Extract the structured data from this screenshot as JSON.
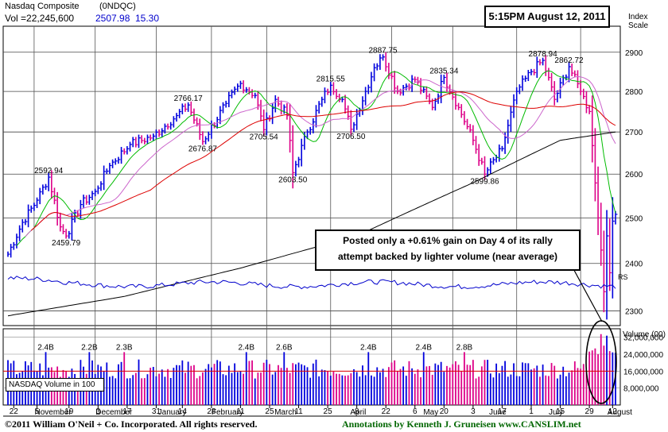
{
  "header": {
    "name": "Nasdaq Composite",
    "symbol": "(0NDQC)",
    "vol_label": "Vol =22,245,600",
    "last_price": "2507.98",
    "change": "15.30",
    "timestamp": "5:15PM August 12, 2011",
    "scale_label": [
      "Index",
      "Scale"
    ]
  },
  "annotation": {
    "lines": [
      "Posted only a +0.61% gain on Day 4 of its rally",
      "attempt backed by lighter volume (near average)"
    ]
  },
  "volume_panel": {
    "legend": "NASDAQ Volume in 100",
    "title": "Volume (00)",
    "ticks": [
      {
        "value": 32000000,
        "label": "32,000,000"
      },
      {
        "value": 24000000,
        "label": "24,000,000"
      },
      {
        "value": 16000000,
        "label": "16,000,000"
      },
      {
        "value": 8000000,
        "label": "8,000,000"
      }
    ],
    "peak_labels": [
      {
        "bar": 13,
        "label": "2.4B"
      },
      {
        "bar": 28,
        "label": "2.2B"
      },
      {
        "bar": 40,
        "label": "2.3B"
      },
      {
        "bar": 82,
        "label": "2.4B"
      },
      {
        "bar": 95,
        "label": "2.6B"
      },
      {
        "bar": 124,
        "label": "2.4B"
      },
      {
        "bar": 143,
        "label": "2.4B"
      },
      {
        "bar": 157,
        "label": "2.8B"
      }
    ]
  },
  "footer": {
    "copyright": "©2011 William O'Neil + Co. Incorporated. All rights reserved.",
    "credit": "Annotations by Kenneth J. Gruneisen www.CANSLIM.net"
  },
  "colors": {
    "up": "#0000dd",
    "down": "#dd0088",
    "ma10": "#00bb00",
    "ma21": "#cc66cc",
    "ma50": "#dd0000",
    "ma200": "#000000",
    "rs": "#0000cc",
    "grid": "#555555",
    "annotation_text": "#000000",
    "credit_text": "#006600"
  },
  "chart_data": {
    "type": "ohlc",
    "y_scale": "log",
    "ylim": [
      2270,
      2960
    ],
    "y_ticks": [
      2300,
      2400,
      2500,
      2600,
      2700,
      2800,
      2900
    ],
    "x_tick_labels": [
      {
        "bar": 2,
        "label": "22"
      },
      {
        "bar": 10,
        "label": "5"
      },
      {
        "bar": 21,
        "label": "19"
      },
      {
        "bar": 31,
        "label": "3"
      },
      {
        "bar": 41,
        "label": "17"
      },
      {
        "bar": 51,
        "label": "31"
      },
      {
        "bar": 60,
        "label": "14"
      },
      {
        "bar": 70,
        "label": "28"
      },
      {
        "bar": 80,
        "label": "11"
      },
      {
        "bar": 90,
        "label": "25"
      },
      {
        "bar": 100,
        "label": "11"
      },
      {
        "bar": 110,
        "label": "25"
      },
      {
        "bar": 120,
        "label": "8"
      },
      {
        "bar": 130,
        "label": "22"
      },
      {
        "bar": 140,
        "label": "6"
      },
      {
        "bar": 150,
        "label": "20"
      },
      {
        "bar": 160,
        "label": "3"
      },
      {
        "bar": 170,
        "label": "17"
      },
      {
        "bar": 180,
        "label": "1"
      },
      {
        "bar": 190,
        "label": "15"
      },
      {
        "bar": 200,
        "label": "29"
      },
      {
        "bar": 208,
        "label": "12"
      }
    ],
    "month_labels": [
      {
        "bar": 10,
        "label": "November"
      },
      {
        "bar": 31,
        "label": "December"
      },
      {
        "bar": 51,
        "label": "January"
      },
      {
        "bar": 70,
        "label": "February"
      },
      {
        "bar": 90,
        "label": "March"
      },
      {
        "bar": 115,
        "label": "April"
      },
      {
        "bar": 140,
        "label": "May"
      },
      {
        "bar": 163,
        "label": "June"
      },
      {
        "bar": 183,
        "label": "July"
      },
      {
        "bar": 205,
        "label": "August"
      }
    ],
    "month_dividers": [
      9,
      30,
      51,
      70,
      89,
      111,
      132,
      153,
      175,
      197
    ],
    "price_anchors": [
      [
        0,
        2420
      ],
      [
        5,
        2490
      ],
      [
        10,
        2540
      ],
      [
        14,
        2592.94
      ],
      [
        18,
        2480
      ],
      [
        20,
        2459.79
      ],
      [
        25,
        2530
      ],
      [
        30,
        2560
      ],
      [
        35,
        2620
      ],
      [
        42,
        2670
      ],
      [
        50,
        2690
      ],
      [
        58,
        2740
      ],
      [
        62,
        2766.17
      ],
      [
        67,
        2676.87
      ],
      [
        75,
        2770
      ],
      [
        80,
        2820
      ],
      [
        85,
        2790
      ],
      [
        88,
        2705.54
      ],
      [
        92,
        2780
      ],
      [
        96,
        2740
      ],
      [
        98,
        2603.5
      ],
      [
        103,
        2700
      ],
      [
        108,
        2780
      ],
      [
        111,
        2815.55
      ],
      [
        115,
        2780
      ],
      [
        118,
        2706.5
      ],
      [
        123,
        2800
      ],
      [
        126,
        2860
      ],
      [
        129,
        2887.75
      ],
      [
        134,
        2800
      ],
      [
        140,
        2830
      ],
      [
        146,
        2760
      ],
      [
        150,
        2835.34
      ],
      [
        155,
        2760
      ],
      [
        160,
        2680
      ],
      [
        164,
        2599.86
      ],
      [
        170,
        2660
      ],
      [
        175,
        2800
      ],
      [
        180,
        2850
      ],
      [
        184,
        2878.94
      ],
      [
        188,
        2780
      ],
      [
        193,
        2862.72
      ],
      [
        197,
        2800
      ],
      [
        200,
        2750
      ],
      [
        203,
        2500
      ],
      [
        205,
        2340
      ],
      [
        206,
        2460
      ],
      [
        207,
        2380
      ],
      [
        208,
        2492.68
      ],
      [
        209,
        2507.98
      ]
    ],
    "price_labels": [
      {
        "bar": 14,
        "value": 2592.94,
        "label": "2592.94",
        "pos": "above"
      },
      {
        "bar": 20,
        "value": 2459.79,
        "label": "2459.79",
        "pos": "below"
      },
      {
        "bar": 62,
        "value": 2766.17,
        "label": "2766.17",
        "pos": "above"
      },
      {
        "bar": 67,
        "value": 2676.87,
        "label": "2676.87",
        "pos": "below"
      },
      {
        "bar": 88,
        "value": 2705.54,
        "label": "2705.54",
        "pos": "below"
      },
      {
        "bar": 98,
        "value": 2603.5,
        "label": "2603.50",
        "pos": "below"
      },
      {
        "bar": 111,
        "value": 2815.55,
        "label": "2815.55",
        "pos": "above"
      },
      {
        "bar": 118,
        "value": 2706.5,
        "label": "2706.50",
        "pos": "below"
      },
      {
        "bar": 129,
        "value": 2887.75,
        "label": "2887.75",
        "pos": "above"
      },
      {
        "bar": 150,
        "value": 2835.34,
        "label": "2835.34",
        "pos": "above"
      },
      {
        "bar": 164,
        "value": 2599.86,
        "label": "2599.86",
        "pos": "below"
      },
      {
        "bar": 184,
        "value": 2878.94,
        "label": "2878.94",
        "pos": "above"
      },
      {
        "bar": 193,
        "value": 2862.72,
        "label": "2862.72",
        "pos": "above"
      }
    ],
    "rs_label": "RS",
    "ma200_anchors": [
      [
        0,
        2290
      ],
      [
        40,
        2330
      ],
      [
        80,
        2390
      ],
      [
        120,
        2460
      ],
      [
        160,
        2580
      ],
      [
        190,
        2680
      ],
      [
        209,
        2700
      ]
    ],
    "volume_level": 16000000,
    "volume_ylim": [
      0,
      36000000
    ]
  }
}
